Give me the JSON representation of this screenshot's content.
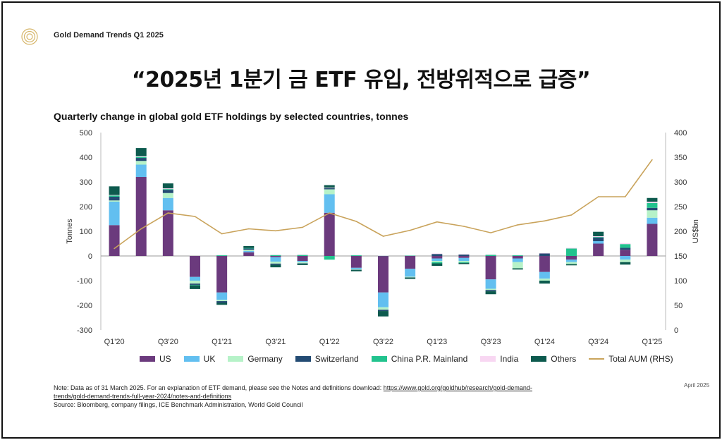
{
  "doc_title": "Gold Demand Trends Q1 2025",
  "headline": "“2025년 1분기 금 ETF 유입, 전방위적으로 급증”",
  "date_label": "April 2025",
  "note": {
    "prefix": "Note: Data as of 31 March 2025. For an explanation of ETF demand, please see the Notes and definitions download: ",
    "link_text": "https://www.gold.org/goldhub/research/gold-demand-trends/gold-demand-trends-full-year-2024/notes-and-definitions",
    "source": "Source: Bloomberg, company filings, ICE Benchmark Administration, World Gold Council"
  },
  "colors": {
    "US": "#6b3a7d",
    "UK": "#62bff0",
    "Germany": "#b6f2c8",
    "Switzerland": "#234b73",
    "China P.R. Mainland": "#22c38e",
    "India": "#f8d7f2",
    "Others": "#0d5a4e",
    "Total AUM (RHS)": "#c9a35b"
  },
  "chart_data": {
    "type": "bar",
    "title": "Quarterly change in global gold ETF holdings by selected countries, tonnes",
    "ylabel": "Tonnes",
    "y2label": "US$bn",
    "ylim": [
      -300,
      500
    ],
    "y2lim": [
      0,
      400
    ],
    "yticks": [
      -300,
      -200,
      -100,
      0,
      100,
      200,
      300,
      400,
      500
    ],
    "y2ticks": [
      0,
      50,
      100,
      150,
      200,
      250,
      300,
      350,
      400
    ],
    "categories": [
      "Q1'20",
      "Q2'20",
      "Q3'20",
      "Q4'20",
      "Q1'21",
      "Q2'21",
      "Q3'21",
      "Q4'21",
      "Q1'22",
      "Q2'22",
      "Q3'22",
      "Q4'22",
      "Q1'23",
      "Q2'23",
      "Q3'23",
      "Q4'23",
      "Q1'24",
      "Q2'24",
      "Q3'24",
      "Q4'24",
      "Q1'25"
    ],
    "xtick_labels": [
      "Q1'20",
      "",
      "Q3'20",
      "",
      "Q1'21",
      "",
      "Q3'21",
      "",
      "Q1'22",
      "",
      "Q3'22",
      "",
      "Q1'23",
      "",
      "Q3'23",
      "",
      "Q1'24",
      "",
      "Q3'24",
      "",
      "Q1'25"
    ],
    "series": [
      {
        "name": "US",
        "type": "bar",
        "values": [
          125,
          320,
          185,
          -85,
          -148,
          15,
          -5,
          -20,
          175,
          -48,
          -148,
          -52,
          -10,
          -8,
          -95,
          -10,
          -65,
          -15,
          50,
          25,
          130
        ]
      },
      {
        "name": "UK",
        "type": "bar",
        "values": [
          95,
          50,
          50,
          -15,
          -30,
          5,
          -18,
          -5,
          75,
          -5,
          -60,
          -32,
          -10,
          -12,
          -38,
          -15,
          -27,
          -10,
          10,
          -15,
          25
        ]
      },
      {
        "name": "Germany",
        "type": "bar",
        "values": [
          5,
          15,
          20,
          -12,
          -5,
          5,
          -8,
          -5,
          20,
          -3,
          -10,
          -3,
          -5,
          -5,
          -5,
          -25,
          -8,
          -8,
          0,
          -10,
          30
        ]
      },
      {
        "name": "Switzerland",
        "type": "bar",
        "values": [
          15,
          12,
          13,
          -5,
          -7,
          5,
          -5,
          -2,
          5,
          -1,
          -5,
          -1,
          8,
          6,
          -5,
          0,
          10,
          0,
          15,
          8,
          10
        ]
      },
      {
        "name": "China P.R. Mainland",
        "type": "bar",
        "values": [
          5,
          5,
          3,
          -2,
          3,
          2,
          4,
          4,
          -15,
          3,
          1,
          2,
          -5,
          -3,
          5,
          3,
          0,
          30,
          2,
          15,
          20
        ]
      },
      {
        "name": "India",
        "type": "bar",
        "values": [
          2,
          3,
          3,
          0,
          1,
          0,
          1,
          2,
          2,
          1,
          1,
          1,
          2,
          1,
          1,
          1,
          2,
          3,
          3,
          4,
          5
        ]
      },
      {
        "name": "Others",
        "type": "bar",
        "values": [
          35,
          32,
          20,
          -15,
          -8,
          8,
          -10,
          -5,
          10,
          -5,
          -22,
          -5,
          -10,
          -5,
          -12,
          -5,
          -12,
          -5,
          18,
          -10,
          15
        ]
      },
      {
        "name": "Total AUM (RHS)",
        "type": "line",
        "axis": "right",
        "values": [
          165,
          205,
          237,
          230,
          195,
          205,
          201,
          208,
          237,
          220,
          190,
          202,
          219,
          210,
          197,
          213,
          221,
          233,
          270,
          270,
          345
        ]
      }
    ],
    "legend_position": "bottom",
    "grid": false
  }
}
